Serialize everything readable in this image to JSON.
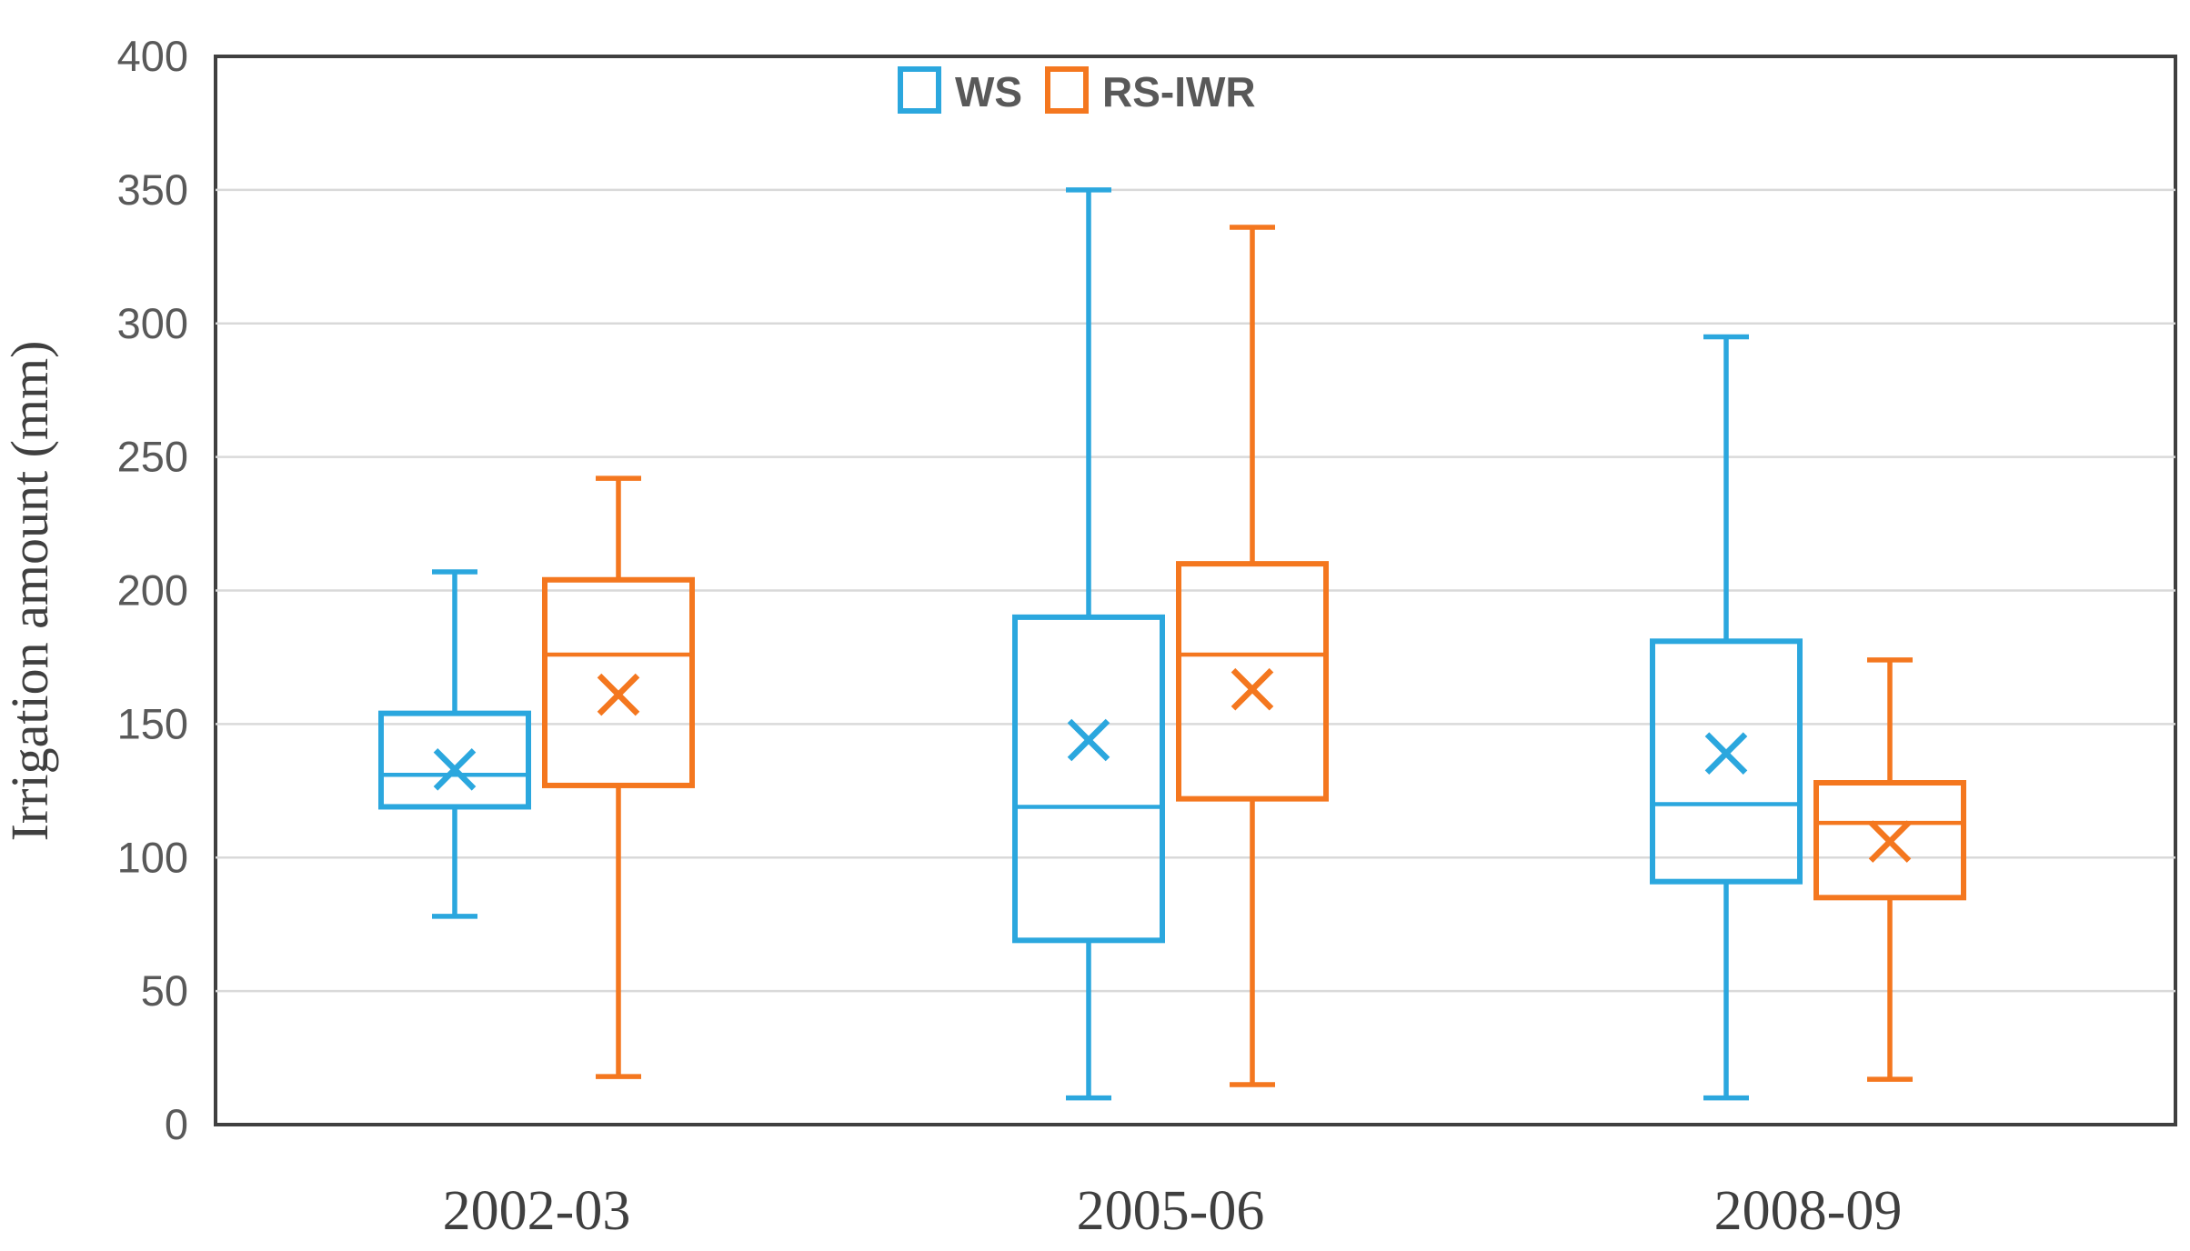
{
  "chart_data": {
    "type": "boxplot",
    "title": "",
    "xlabel": "",
    "ylabel": "Irrigation amount (mm)",
    "ylim": [
      0,
      400
    ],
    "yticks": [
      0,
      50,
      100,
      150,
      200,
      250,
      300,
      350,
      400
    ],
    "grid": "horizontal-light-gray",
    "legend_position": "top-center",
    "categories": [
      "2002-03",
      "2005-06",
      "2008-09"
    ],
    "series": [
      {
        "name": "WS",
        "color": "#2BA7DE",
        "boxes": [
          {
            "category": "2002-03",
            "whisker_low": 78,
            "q1": 119,
            "median": 131,
            "mean": 133,
            "q3": 154,
            "whisker_high": 207
          },
          {
            "category": "2005-06",
            "whisker_low": 10,
            "q1": 69,
            "median": 119,
            "mean": 144,
            "q3": 190,
            "whisker_high": 350
          },
          {
            "category": "2008-09",
            "whisker_low": 10,
            "q1": 91,
            "median": 120,
            "mean": 139,
            "q3": 181,
            "whisker_high": 295
          }
        ]
      },
      {
        "name": "RS-IWR",
        "color": "#F4771F",
        "boxes": [
          {
            "category": "2002-03",
            "whisker_low": 18,
            "q1": 127,
            "median": 176,
            "mean": 161,
            "q3": 204,
            "whisker_high": 242
          },
          {
            "category": "2005-06",
            "whisker_low": 15,
            "q1": 122,
            "median": 176,
            "mean": 163,
            "q3": 210,
            "whisker_high": 336
          },
          {
            "category": "2008-09",
            "whisker_low": 17,
            "q1": 85,
            "median": 113,
            "mean": 106,
            "q3": 128,
            "whisker_high": 174
          }
        ]
      }
    ],
    "colors": {
      "gridline": "#D9D9D9",
      "plot_border": "#404040",
      "tick_label": "#595959",
      "axis_label": "#3F3F3F"
    }
  }
}
